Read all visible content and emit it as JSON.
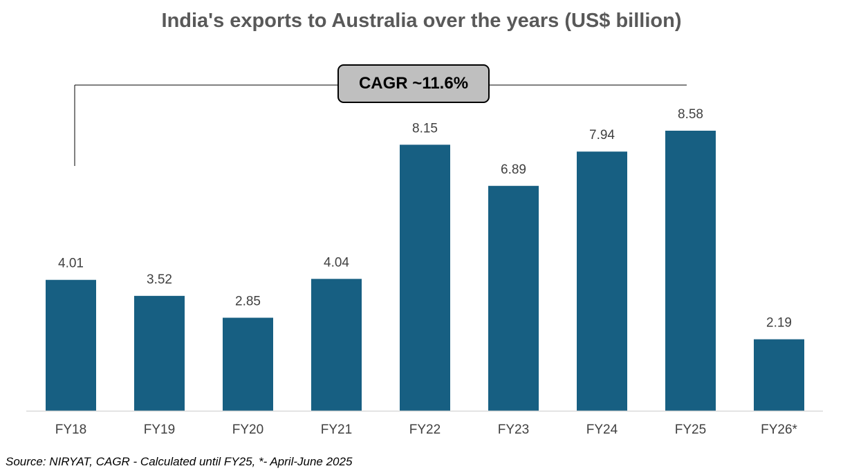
{
  "chart_data": {
    "type": "bar",
    "title": "India's exports to Australia over the years (US$ billion)",
    "categories": [
      "FY18",
      "FY19",
      "FY20",
      "FY21",
      "FY22",
      "FY23",
      "FY24",
      "FY25",
      "FY26*"
    ],
    "values": [
      4.01,
      3.52,
      2.85,
      4.04,
      8.15,
      6.89,
      7.94,
      8.58,
      2.19
    ],
    "data_labels": [
      "4.01",
      "3.52",
      "2.85",
      "4.04",
      "8.15",
      "6.89",
      "7.94",
      "8.58",
      "2.19"
    ],
    "xlabel": "",
    "ylabel": "",
    "ylim": [
      0,
      8.58
    ],
    "grid": false,
    "legend": "none",
    "annotation": "CAGR ~11.6%",
    "bar_color": "#175f82"
  },
  "footer": {
    "source": "Source: NIRYAT, CAGR - Calculated until FY25, *- April-June 2025"
  }
}
